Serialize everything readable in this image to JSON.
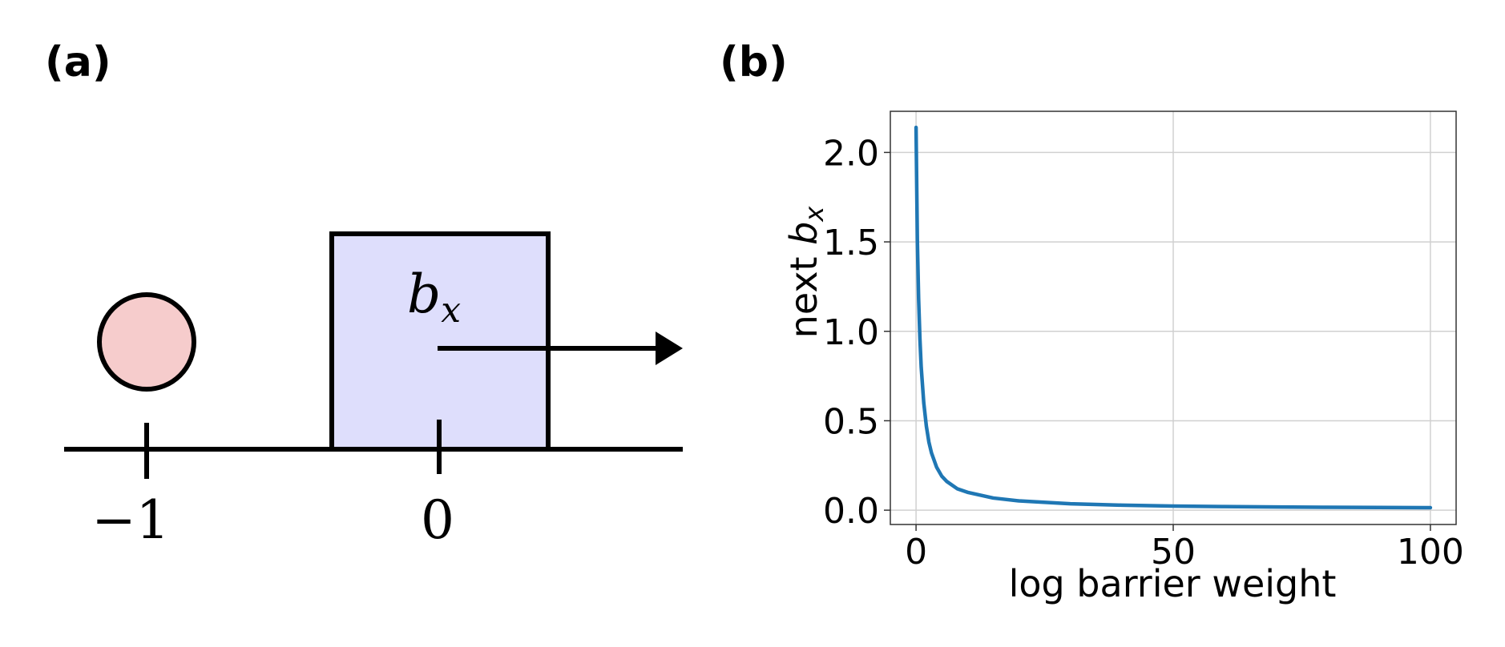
{
  "panel_a": {
    "label": "(a)",
    "block_label_main": "b",
    "block_label_sub": "x",
    "tick_labels": [
      "−1",
      "0"
    ],
    "colors": {
      "ball_fill": "#f6cccc",
      "block_fill": "#dedefc",
      "stroke": "#000000"
    },
    "icons": [
      "ball-circle",
      "right-arrow-icon"
    ]
  },
  "panel_b": {
    "label": "(b)",
    "ylabel_prefix": "next ",
    "ylabel_main": "b",
    "ylabel_sub": "x",
    "xlabel": "log barrier weight"
  },
  "chart_data": {
    "type": "line",
    "title": "",
    "xlabel": "log barrier weight",
    "ylabel": "next b_x",
    "xlim": [
      -5,
      105
    ],
    "ylim": [
      -0.08,
      2.23
    ],
    "x_ticks": [
      0,
      50,
      100
    ],
    "x_tick_labels": [
      "0",
      "50",
      "100"
    ],
    "y_ticks": [
      0.0,
      0.5,
      1.0,
      1.5,
      2.0
    ],
    "y_tick_labels": [
      "0.0",
      "0.5",
      "1.0",
      "1.5",
      "2.0"
    ],
    "grid": true,
    "legend": "none",
    "series": [
      {
        "color": "#1f77b4",
        "x": [
          0,
          0.25,
          0.5,
          0.75,
          1,
          1.5,
          2,
          2.5,
          3,
          4,
          5,
          6,
          8,
          10,
          15,
          20,
          30,
          40,
          50,
          60,
          70,
          80,
          90,
          100
        ],
        "y": [
          2.14,
          1.51,
          1.18,
          0.96,
          0.8,
          0.6,
          0.47,
          0.38,
          0.32,
          0.24,
          0.19,
          0.16,
          0.12,
          0.1,
          0.068,
          0.052,
          0.036,
          0.028,
          0.023,
          0.02,
          0.018,
          0.016,
          0.015,
          0.014
        ]
      }
    ]
  }
}
